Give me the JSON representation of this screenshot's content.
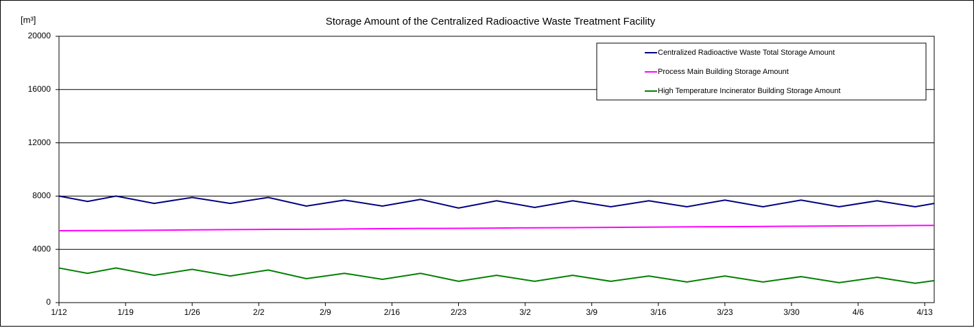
{
  "chart_data": {
    "type": "line",
    "title": "Storage Amount of the Centralized Radioactive Waste Treatment Facility",
    "y_label": "[m³]",
    "x": [
      0,
      3,
      6,
      10,
      14,
      18,
      22,
      26,
      30,
      34,
      38,
      42,
      46,
      50,
      54,
      58,
      62,
      66,
      70,
      74,
      78,
      82,
      86,
      90,
      92
    ],
    "xlim": [
      0,
      92
    ],
    "xticks": [
      {
        "value": 0,
        "label": "1/12"
      },
      {
        "value": 7,
        "label": "1/19"
      },
      {
        "value": 14,
        "label": "1/26"
      },
      {
        "value": 21,
        "label": "2/2"
      },
      {
        "value": 28,
        "label": "2/9"
      },
      {
        "value": 35,
        "label": "2/16"
      },
      {
        "value": 42,
        "label": "2/23"
      },
      {
        "value": 49,
        "label": "3/2"
      },
      {
        "value": 56,
        "label": "3/9"
      },
      {
        "value": 63,
        "label": "3/16"
      },
      {
        "value": 70,
        "label": "3/23"
      },
      {
        "value": 77,
        "label": "3/30"
      },
      {
        "value": 84,
        "label": "4/6"
      },
      {
        "value": 91,
        "label": "4/13"
      }
    ],
    "ylim": [
      0,
      20000
    ],
    "yticks": [
      0,
      4000,
      8000,
      12000,
      16000,
      20000
    ],
    "grid": true,
    "legend": "top-right",
    "series": [
      {
        "name": "Centralized Radioactive Waste Total Storage Amount",
        "color": "#000080",
        "values": [
          8000,
          7600,
          8000,
          7450,
          7900,
          7450,
          7900,
          7250,
          7700,
          7250,
          7750,
          7100,
          7650,
          7150,
          7650,
          7200,
          7650,
          7200,
          7700,
          7200,
          7700,
          7200,
          7650,
          7200,
          7450
        ]
      },
      {
        "name": "Process Main Building Storage Amount",
        "color": "#ff00ff",
        "values": [
          5400,
          5410,
          5420,
          5440,
          5460,
          5480,
          5500,
          5510,
          5530,
          5550,
          5570,
          5580,
          5600,
          5620,
          5630,
          5650,
          5670,
          5690,
          5700,
          5720,
          5740,
          5760,
          5770,
          5790,
          5800
        ]
      },
      {
        "name": "High Temperature Incinerator Building Storage Amount",
        "color": "#008000",
        "values": [
          2600,
          2200,
          2600,
          2050,
          2500,
          2000,
          2450,
          1800,
          2200,
          1750,
          2200,
          1600,
          2050,
          1600,
          2050,
          1600,
          2000,
          1550,
          2000,
          1550,
          1950,
          1500,
          1900,
          1450,
          1650
        ]
      }
    ]
  }
}
